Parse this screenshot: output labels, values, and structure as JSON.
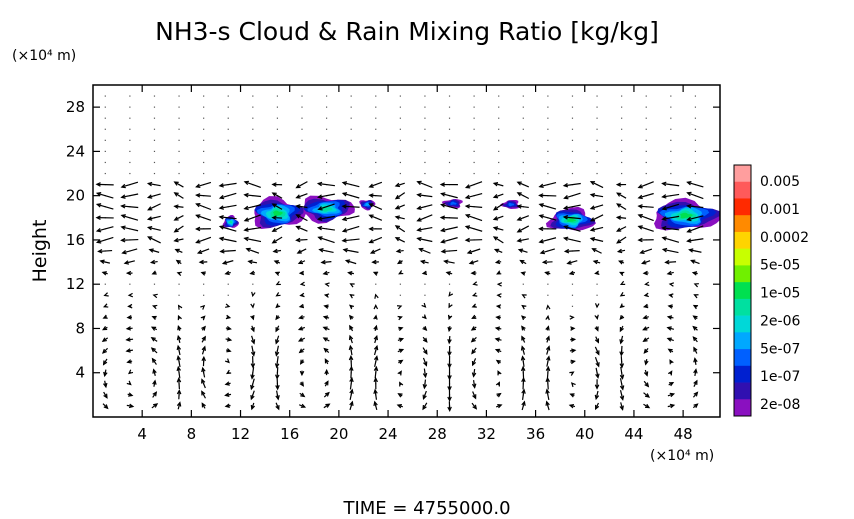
{
  "chart_data": {
    "type": "heatmap",
    "title": "NH3-s Cloud & Rain Mixing Ratio [kg/kg]",
    "xlabel": "",
    "ylabel": "Height",
    "x_unit_label": "(×10⁴ m)",
    "y_unit_label": "(×10⁴ m)",
    "xlim": [
      0,
      51
    ],
    "ylim": [
      0,
      30
    ],
    "x_ticks": [
      4,
      8,
      12,
      16,
      20,
      24,
      28,
      32,
      36,
      40,
      44,
      48
    ],
    "y_ticks": [
      4,
      8,
      12,
      16,
      20,
      24,
      28
    ],
    "colorbar": {
      "labels": [
        "0.005",
        "0.001",
        "0.0002",
        "5e-05",
        "1e-05",
        "2e-06",
        "5e-07",
        "1e-07",
        "2e-08"
      ],
      "colors": [
        "#ff9e9e",
        "#ff5a5a",
        "#ff2a00",
        "#ff8a00",
        "#ffd400",
        "#c8ff00",
        "#70f000",
        "#00e050",
        "#00e0a0",
        "#00d8d8",
        "#00a8ff",
        "#0060ff",
        "#0020d0",
        "#3010b0",
        "#8a10c0"
      ]
    },
    "clouds": [
      {
        "x": 11.2,
        "y": 17.6,
        "w": 1.2,
        "h": 1.1,
        "level": 4
      },
      {
        "x": 15.0,
        "y": 18.4,
        "w": 4.2,
        "h": 2.6,
        "level": 5
      },
      {
        "x": 19.0,
        "y": 18.8,
        "w": 4.2,
        "h": 2.2,
        "level": 4
      },
      {
        "x": 22.3,
        "y": 19.2,
        "w": 1.2,
        "h": 0.9,
        "level": 2
      },
      {
        "x": 29.3,
        "y": 19.3,
        "w": 1.5,
        "h": 0.8,
        "level": 1
      },
      {
        "x": 34.0,
        "y": 19.2,
        "w": 1.4,
        "h": 0.8,
        "level": 1
      },
      {
        "x": 38.9,
        "y": 17.8,
        "w": 3.6,
        "h": 2.0,
        "level": 5
      },
      {
        "x": 48.2,
        "y": 18.2,
        "w": 5.4,
        "h": 2.6,
        "level": 5
      }
    ],
    "wind_field": {
      "cells": [
        {
          "x": 3.5,
          "y": 3.5,
          "r": 3.2,
          "dir": 1
        },
        {
          "x": 11.0,
          "y": 4.5,
          "r": 2.6,
          "dir": -1
        },
        {
          "x": 18.0,
          "y": 4.0,
          "r": 3.5,
          "dir": 1
        },
        {
          "x": 25.5,
          "y": 3.5,
          "r": 3.0,
          "dir": -1
        },
        {
          "x": 32.5,
          "y": 3.5,
          "r": 3.4,
          "dir": 1
        },
        {
          "x": 39.0,
          "y": 3.5,
          "r": 2.8,
          "dir": -1
        },
        {
          "x": 46.0,
          "y": 4.5,
          "r": 3.2,
          "dir": 1
        }
      ],
      "upper_flow": -1.2,
      "top_height": 21
    },
    "time_label": "TIME  =  4755000.0"
  }
}
